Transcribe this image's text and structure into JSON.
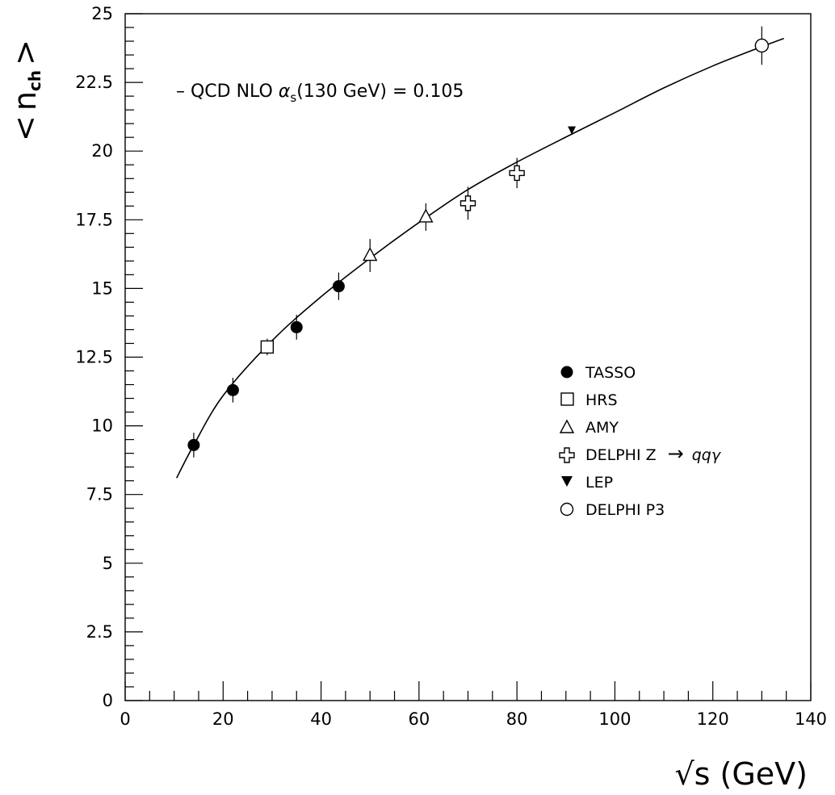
{
  "chart_data": {
    "type": "scatter",
    "title": "",
    "xlabel": "√s (GeV)",
    "ylabel": "< n_ch >",
    "ylabel_main": "n",
    "ylabel_sub": "ch",
    "xlim": [
      0,
      140
    ],
    "ylim": [
      0,
      25
    ],
    "x_ticks": [
      0,
      20,
      40,
      60,
      80,
      100,
      120,
      140
    ],
    "y_ticks": [
      0,
      2.5,
      5,
      7.5,
      10,
      12.5,
      15,
      17.5,
      20,
      22.5,
      25
    ],
    "x_tick_labels": [
      "0",
      "20",
      "40",
      "60",
      "80",
      "100",
      "120",
      "140"
    ],
    "y_tick_labels": [
      "0",
      "2.5",
      "5",
      "7.5",
      "10",
      "12.5",
      "15",
      "17.5",
      "20",
      "22.5",
      "25"
    ],
    "grid": false,
    "legend_position": "right-center",
    "annotation": {
      "prefix": "– QCD NLO ",
      "alpha": "α",
      "alpha_sub": "s",
      "suffix": "(130 GeV) = 0.105"
    },
    "curve": {
      "name": "QCD NLO αs(130 GeV) = 0.105",
      "x": [
        10.5,
        14,
        20,
        30,
        40,
        50,
        60,
        70,
        80,
        91,
        100,
        110,
        120,
        130,
        134.5
      ],
      "y": [
        8.1,
        9.3,
        11.1,
        13.1,
        14.7,
        16.1,
        17.4,
        18.6,
        19.6,
        20.6,
        21.4,
        22.3,
        23.1,
        23.8,
        24.1
      ]
    },
    "series": [
      {
        "name": "TASSO",
        "marker": "filled-circle",
        "x": [
          14,
          22,
          35,
          43.6
        ],
        "y": [
          9.3,
          11.3,
          13.59,
          15.08
        ],
        "err": [
          0.45,
          0.45,
          0.45,
          0.5
        ]
      },
      {
        "name": "HRS",
        "marker": "open-square",
        "x": [
          29
        ],
        "y": [
          12.87
        ],
        "err": [
          0.3
        ]
      },
      {
        "name": "AMY",
        "marker": "open-triangle",
        "x": [
          50,
          61.4
        ],
        "y": [
          16.2,
          17.6
        ],
        "err": [
          0.6,
          0.5
        ]
      },
      {
        "name": "DELPHI Z → qqγ",
        "marker": "open-cross",
        "x": [
          70,
          80
        ],
        "y": [
          18.1,
          19.2
        ],
        "err": [
          0.6,
          0.55
        ]
      },
      {
        "name": "LEP",
        "marker": "filled-triangle-down",
        "x": [
          91.2
        ],
        "y": [
          20.75
        ],
        "err": [
          0.15
        ]
      },
      {
        "name": "DELPHI P3",
        "marker": "open-circle",
        "x": [
          130
        ],
        "y": [
          23.84
        ],
        "err": [
          0.7
        ]
      }
    ],
    "legend_labels": {
      "tasso": "TASSO",
      "hrs": "HRS",
      "amy": "AMY",
      "delphi_z": "DELPHI Z",
      "delphi_z_arrow": "→",
      "delphi_z_final": "qqγ",
      "lep": "LEP",
      "delphi_p3": "DELPHI P3"
    }
  }
}
